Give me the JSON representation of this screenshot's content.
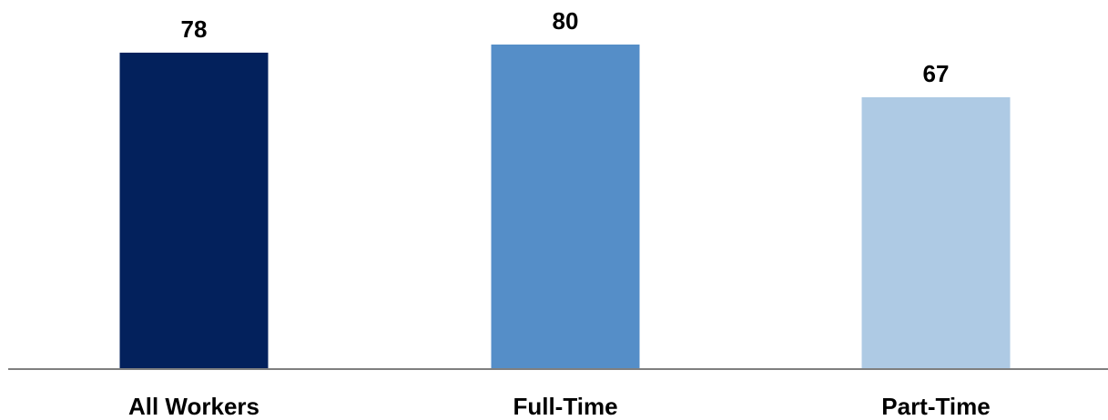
{
  "chart_data": {
    "type": "bar",
    "categories": [
      "All Workers",
      "Full-Time",
      "Part-Time"
    ],
    "values": [
      78,
      80,
      67
    ],
    "data_labels": [
      "78",
      "80",
      "67"
    ],
    "colors": [
      "#03215c",
      "#558ec8",
      "#aecae4"
    ],
    "axis_color": "#7f7f7f",
    "ylim": [
      0,
      80
    ],
    "grid": false,
    "legend": "none"
  }
}
